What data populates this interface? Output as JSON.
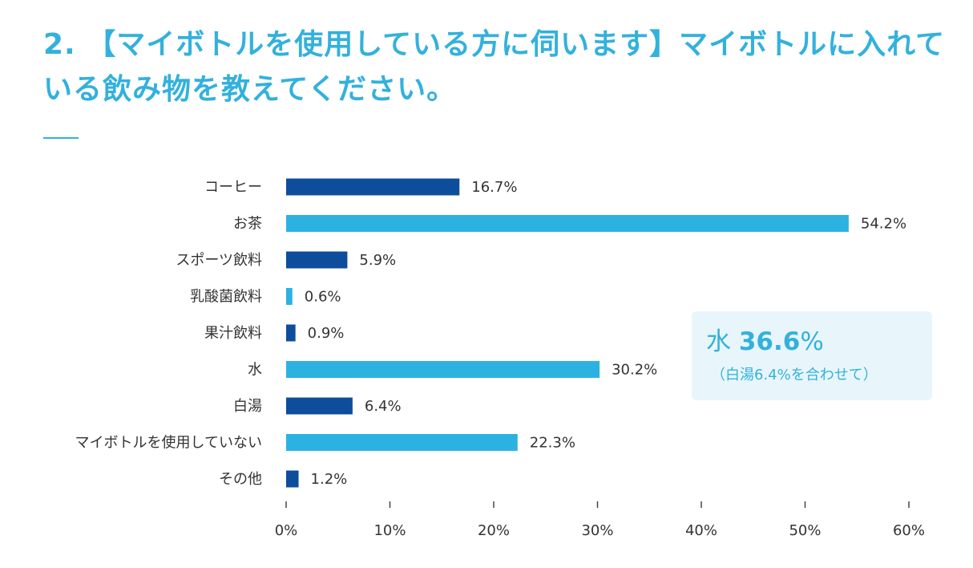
{
  "title": "2. 【マイボトルを使用している方に伺います】マイボトルに入れている飲み物を教えてください。",
  "colors": {
    "title": "#33b1dc",
    "dark": "#0d4d9c",
    "light": "#2cb2e1",
    "text": "#333333",
    "callout_bg": "#e8f6fc"
  },
  "chart_data": {
    "type": "bar",
    "orientation": "horizontal",
    "categories": [
      "コーヒー",
      "お茶",
      "スポーツ飲料",
      "乳酸菌飲料",
      "果汁飲料",
      "水",
      "白湯",
      "マイボトルを使用していない",
      "その他"
    ],
    "values": [
      16.7,
      54.2,
      5.9,
      0.6,
      0.9,
      30.2,
      6.4,
      22.3,
      1.2
    ],
    "value_labels": [
      "16.7%",
      "54.2%",
      "5.9%",
      "0.6%",
      "0.9%",
      "30.2%",
      "6.4%",
      "22.3%",
      "1.2%"
    ],
    "bar_colors": [
      "#0d4d9c",
      "#2cb2e1",
      "#0d4d9c",
      "#2cb2e1",
      "#0d4d9c",
      "#2cb2e1",
      "#0d4d9c",
      "#2cb2e1",
      "#0d4d9c"
    ],
    "xlim": [
      0,
      60
    ],
    "xticks": [
      0,
      10,
      20,
      30,
      40,
      50,
      60
    ],
    "xtick_labels": [
      "0%",
      "10%",
      "20%",
      "30%",
      "40%",
      "50%",
      "60%"
    ],
    "grid": false
  },
  "callout": {
    "label": "水",
    "value": "36.6",
    "unit": "%",
    "note": "（白湯6.4%を合わせて）"
  }
}
